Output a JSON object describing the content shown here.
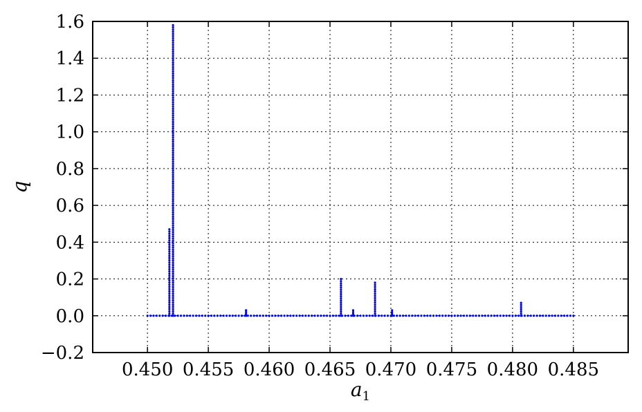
{
  "chart_data": {
    "type": "scatter",
    "title": "",
    "xlabel": "a",
    "xlabel_subscript": "1",
    "ylabel": "q",
    "xlim": [
      0.4455,
      0.4895
    ],
    "ylim": [
      -0.2,
      1.6
    ],
    "grid": true,
    "legend": "none",
    "x_ticks": [
      "0.450",
      "0.455",
      "0.460",
      "0.465",
      "0.470",
      "0.475",
      "0.480",
      "0.485"
    ],
    "y_ticks": [
      "−0.2",
      "0.0",
      "0.2",
      "0.4",
      "0.6",
      "0.8",
      "1.0",
      "1.2",
      "1.4",
      "1.6"
    ],
    "series": [
      {
        "color": "#0000ff",
        "baseline": {
          "x_start": 0.45,
          "x_end": 0.485,
          "step": 0.00025,
          "y": 0.0
        },
        "spikes": [
          {
            "x": 0.4518,
            "y_max": 0.47
          },
          {
            "x": 0.4521,
            "y_max": 1.58
          },
          {
            "x": 0.4581,
            "y_max": 0.03
          },
          {
            "x": 0.4659,
            "y_max": 0.2
          },
          {
            "x": 0.4669,
            "y_max": 0.03
          },
          {
            "x": 0.4687,
            "y_max": 0.18
          },
          {
            "x": 0.4701,
            "y_max": 0.03
          },
          {
            "x": 0.4807,
            "y_max": 0.07
          }
        ]
      }
    ]
  }
}
